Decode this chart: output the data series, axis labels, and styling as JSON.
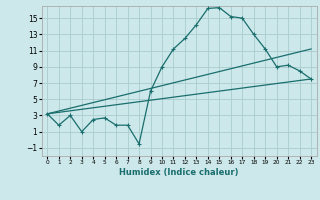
{
  "xlabel": "Humidex (Indice chaleur)",
  "ylabel": "",
  "bg_color": "#cce8ea",
  "grid_color": "#aacccc",
  "line_color": "#1a6e6e",
  "line1_x": [
    0,
    1,
    2,
    3,
    4,
    5,
    6,
    7,
    8,
    9,
    10,
    11,
    12,
    13,
    14,
    15,
    16,
    17,
    18,
    19,
    20,
    21,
    22,
    23
  ],
  "line1_y": [
    3.2,
    1.8,
    3.0,
    1.0,
    2.5,
    2.7,
    1.8,
    1.8,
    -0.5,
    6.0,
    9.0,
    11.2,
    12.5,
    14.2,
    16.2,
    16.3,
    15.2,
    15.0,
    13.0,
    11.2,
    9.0,
    9.2,
    8.5,
    7.5
  ],
  "line2_x": [
    0,
    23
  ],
  "line2_y": [
    3.2,
    11.2
  ],
  "line3_x": [
    0,
    23
  ],
  "line3_y": [
    3.2,
    7.5
  ],
  "xlim": [
    -0.5,
    23.5
  ],
  "ylim": [
    -2,
    16.5
  ],
  "xticks": [
    0,
    1,
    2,
    3,
    4,
    5,
    6,
    7,
    8,
    9,
    10,
    11,
    12,
    13,
    14,
    15,
    16,
    17,
    18,
    19,
    20,
    21,
    22,
    23
  ],
  "yticks": [
    -1,
    1,
    3,
    5,
    7,
    9,
    11,
    13,
    15
  ]
}
